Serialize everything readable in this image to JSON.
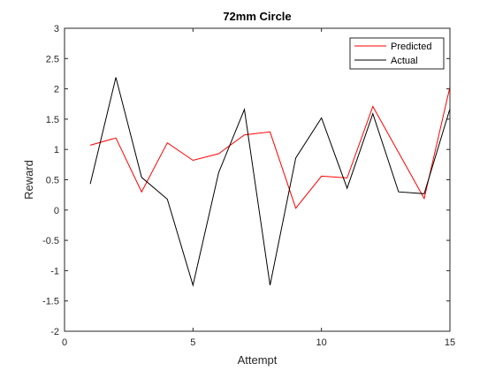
{
  "chart_data": {
    "type": "line",
    "title": "72mm Circle",
    "xlabel": "Attempt",
    "ylabel": "Reward",
    "xlim": [
      0,
      15
    ],
    "ylim": [
      -2,
      3
    ],
    "x_ticks": [
      0,
      5,
      10,
      15
    ],
    "y_ticks": [
      -2,
      -1.5,
      -1,
      -0.5,
      0,
      0.5,
      1,
      1.5,
      2,
      2.5,
      3
    ],
    "x_tick_labels": [
      "0",
      "5",
      "10",
      "15"
    ],
    "y_tick_labels": [
      "-2",
      "-1.5",
      "-1",
      "-0.5",
      "0",
      "0.5",
      "1",
      "1.5",
      "2",
      "2.5",
      "3"
    ],
    "grid": false,
    "legend_position": "top-right",
    "x": [
      1,
      2,
      3,
      4,
      5,
      6,
      7,
      8,
      9,
      10,
      11,
      12,
      13,
      14,
      15
    ],
    "series": [
      {
        "name": "Predicted",
        "color": "#ff0000",
        "values": [
          1.07,
          1.19,
          0.3,
          1.11,
          0.82,
          0.93,
          1.24,
          1.29,
          0.03,
          0.56,
          0.53,
          1.71,
          0.95,
          0.19,
          2.03
        ]
      },
      {
        "name": "Actual",
        "color": "#000000",
        "values": [
          0.43,
          2.19,
          0.54,
          0.18,
          -1.24,
          0.62,
          1.66,
          -1.24,
          0.86,
          1.52,
          0.36,
          1.59,
          0.3,
          0.27,
          1.67
        ]
      }
    ]
  }
}
